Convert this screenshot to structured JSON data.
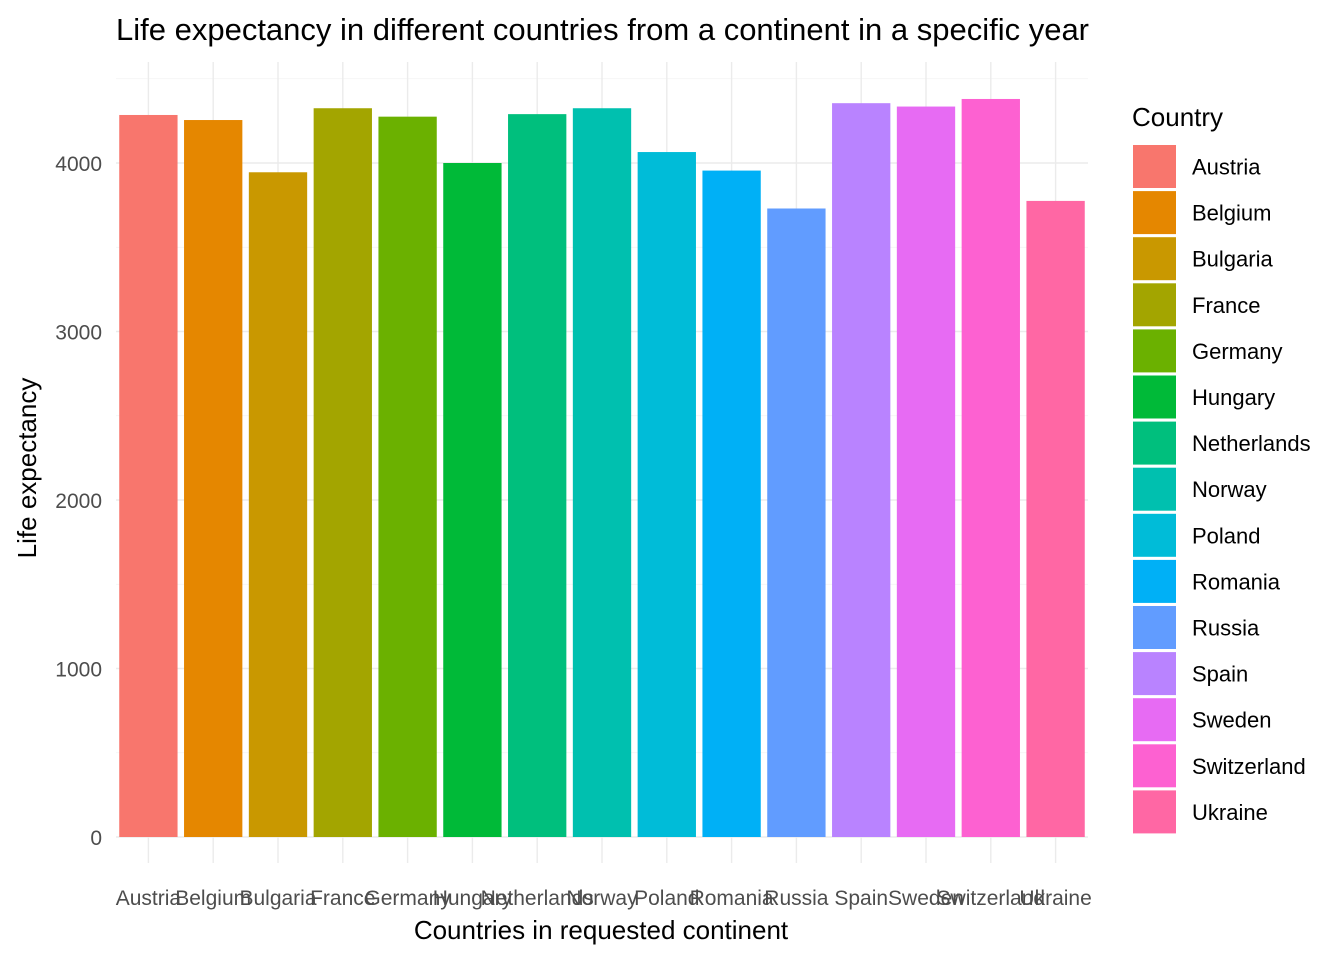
{
  "chart_data": {
    "type": "bar",
    "title": "Life expectancy in different countries from a continent in a specific year",
    "xlabel": "Countries in requested continent",
    "ylabel": "Life expectancy",
    "ylim": [
      0,
      4500
    ],
    "yticks": [
      0,
      1000,
      2000,
      3000,
      4000
    ],
    "grid": true,
    "legend": {
      "title": "Country",
      "placement": "right"
    },
    "categories": [
      "Austria",
      "Belgium",
      "Bulgaria",
      "France",
      "Germany",
      "Hungary",
      "Netherlands",
      "Norway",
      "Poland",
      "Romania",
      "Russia",
      "Spain",
      "Sweden",
      "Switzerland",
      "Ukraine"
    ],
    "values": [
      4285,
      4255,
      3945,
      4325,
      4275,
      4000,
      4290,
      4325,
      4065,
      3955,
      3730,
      4355,
      4335,
      4380,
      3775
    ],
    "colors": [
      "#F8766D",
      "#E58700",
      "#C99800",
      "#A3A500",
      "#6BB100",
      "#00BA38",
      "#00BF7D",
      "#00C0AF",
      "#00BCD8",
      "#00B0F6",
      "#619CFF",
      "#B983FF",
      "#E76BF3",
      "#FD61D1",
      "#FF67A4"
    ]
  }
}
